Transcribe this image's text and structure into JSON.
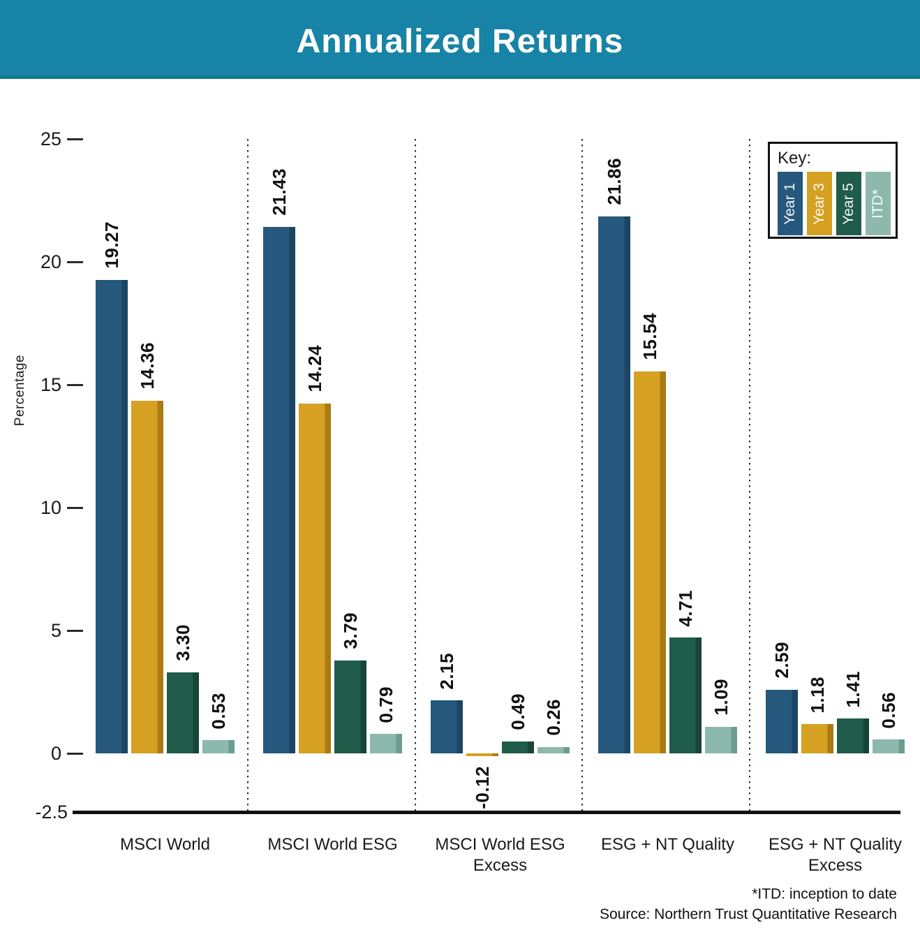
{
  "chart_data": {
    "type": "bar",
    "title": "Annualized Returns",
    "ylabel": "Percentage",
    "yticks": [
      25,
      20,
      15,
      10,
      5,
      0
    ],
    "baseline_tick": "-2.5",
    "ylim": [
      -2.5,
      25
    ],
    "grid": false,
    "legend_title": "Key:",
    "legend_position": "top-right",
    "categories": [
      "MSCI World",
      "MSCI World ESG",
      "MSCI World ESG\nExcess",
      "ESG + NT Quality",
      "ESG + NT Quality\nExcess"
    ],
    "series": [
      {
        "name": "Year 1",
        "color": "#25587c",
        "edge_color": "#1b4563",
        "values": [
          19.27,
          21.43,
          2.15,
          21.86,
          2.59
        ]
      },
      {
        "name": "Year 3",
        "color": "#d6a022",
        "edge_color": "#a97b11",
        "values": [
          14.36,
          14.24,
          -0.12,
          15.54,
          1.18
        ]
      },
      {
        "name": "Year 5",
        "color": "#1f5c49",
        "edge_color": "#164538",
        "values": [
          3.3,
          3.79,
          0.49,
          4.71,
          1.41
        ]
      },
      {
        "name": "ITD*",
        "color": "#8cb9ab",
        "edge_color": "#6c9c8f",
        "values": [
          0.53,
          0.79,
          0.26,
          1.09,
          0.56
        ]
      }
    ],
    "footnotes": [
      "*ITD: inception to date",
      "Source: Northern Trust Quantitative Research"
    ],
    "colors": {
      "header_bg": "#1783a6",
      "header_border": "#0e7a8d",
      "title_text": "#ffffff",
      "axis_line": "#111111",
      "label_text": "#111111"
    }
  }
}
